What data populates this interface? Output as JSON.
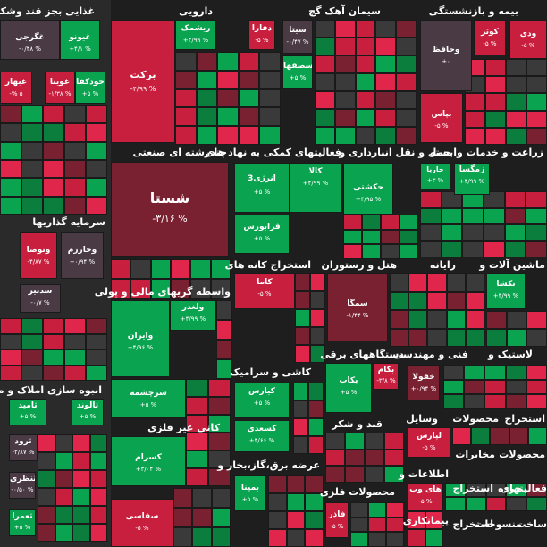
{
  "colors": {
    "green": "#0aa34f",
    "green_dark": "#0b7d3d",
    "neutral": "#3a3a3a",
    "red_dark": "#7a2131",
    "red": "#c91f3e",
    "red_light": "#e0264a",
    "mauve": "#4a3a44",
    "text": "#ffffff"
  },
  "sectors": [
    {
      "label": "غذایی بجز قند وشکر"
    },
    {
      "label": "دارویی"
    },
    {
      "label": "سیمان آهک گچ"
    },
    {
      "label": "بیمه و بازنشستگی"
    },
    {
      "label": "چندرشته ای صنعتی"
    },
    {
      "label": "فعالیتهای کمکی به نهاد های"
    },
    {
      "label": "حمل و نقل انبارداری و"
    },
    {
      "label": "زراعت و خدمات وابسته"
    },
    {
      "label": "سرمایه گذاریها"
    },
    {
      "label": "استخراج کانه های"
    },
    {
      "label": "هتل و رستوران"
    },
    {
      "label": "رایانه"
    },
    {
      "label": "ماشین آلات و"
    },
    {
      "label": "واسطه گریهای مالی و پولی"
    },
    {
      "label": "دستگاههای برقی"
    },
    {
      "label": "فنی و مهندسی"
    },
    {
      "label": "لاستیک و"
    },
    {
      "label": "انبوه سازی املاک و مس"
    },
    {
      "label": "کاشی و سرامیک"
    },
    {
      "label": "کانی غیر فلزی"
    },
    {
      "label": "قند و شکر"
    },
    {
      "label": "وسایل"
    },
    {
      "label": "محصولات"
    },
    {
      "label": "استخراج"
    },
    {
      "label": "مخابرات"
    },
    {
      "label": "محصولات"
    },
    {
      "label": "عرضه برق،گاز،بخار و"
    },
    {
      "label": "اطلاعات و"
    },
    {
      "label": "استخراج"
    },
    {
      "label": "خرده"
    },
    {
      "label": "فعالیتهای"
    },
    {
      "label": "محصولات فلزی"
    },
    {
      "label": "پیمانکاری"
    },
    {
      "label": "استخراج"
    },
    {
      "label": "ساخت"
    },
    {
      "label": "منسوجات"
    }
  ],
  "tiles": [
    {
      "name": "شستا",
      "pct": "-۳/۱۶ %",
      "color": "red_dark"
    },
    {
      "name": "برکت",
      "pct": "-۴/۹۹ %",
      "color": "red"
    },
    {
      "name": "غگرجی",
      "pct": "-۰/۴۸ %",
      "color": "mauve"
    },
    {
      "name": "غیونو",
      "pct": "+۴/۱ %",
      "color": "green"
    },
    {
      "name": "غبهار",
      "pct": "-% ۵",
      "color": "red"
    },
    {
      "name": "غویتا",
      "pct": "-۱/۳۸ %",
      "color": "red"
    },
    {
      "name": "خودکفا",
      "pct": "+۵ %",
      "color": "green"
    },
    {
      "name": "ریشمک",
      "pct": "+۴/۹۹ %",
      "color": "green"
    },
    {
      "name": "دفارا",
      "pct": "-۵ %",
      "color": "red"
    },
    {
      "name": "سیتا",
      "pct": "-۰/۴۷ %",
      "color": "mauve"
    },
    {
      "name": "سصفها",
      "pct": "+۵ %",
      "color": "green"
    },
    {
      "name": "کوثر",
      "pct": "-۵ %",
      "color": "red"
    },
    {
      "name": "ودی",
      "pct": "-۵ %",
      "color": "red"
    },
    {
      "name": "وحافظ",
      "pct": "+۰",
      "color": "mauve"
    },
    {
      "name": "بپاس",
      "pct": "-۵ %",
      "color": "red"
    },
    {
      "name": "انرژی3",
      "pct": "+۵ %",
      "color": "green"
    },
    {
      "name": "کالا",
      "pct": "+۴/۹۹ %",
      "color": "green"
    },
    {
      "name": "فرابورس",
      "pct": "+۵ %",
      "color": "green"
    },
    {
      "name": "حکشتی",
      "pct": "+۴/۹۵ %",
      "color": "green"
    },
    {
      "name": "حاریا",
      "pct": "+۳ %",
      "color": "green"
    },
    {
      "name": "زمگسا",
      "pct": "+۴/۹۹ %",
      "color": "green"
    },
    {
      "name": "وتوصا",
      "pct": "-۴/۸۷ %",
      "color": "red"
    },
    {
      "name": "وخارزم",
      "pct": "+۰/۹۴ %",
      "color": "mauve"
    },
    {
      "name": "سدبیر",
      "pct": "-۰/۷ %",
      "color": "mauve"
    },
    {
      "name": "کاما",
      "pct": "-۵ %",
      "color": "red"
    },
    {
      "name": "سمگا",
      "pct": "-۱/۴۴ %",
      "color": "red_dark"
    },
    {
      "name": "تکشا",
      "pct": "+۴/۹۹ %",
      "color": "green"
    },
    {
      "name": "ولغدر",
      "pct": "+۴/۹۹ %",
      "color": "green"
    },
    {
      "name": "وایران",
      "pct": "+۴/۹۶ %",
      "color": "green"
    },
    {
      "name": "سرچشمه",
      "pct": "+۵ %",
      "color": "green"
    },
    {
      "name": "بکام",
      "pct": "-۳/۸ %",
      "color": "red"
    },
    {
      "name": "بکاب",
      "pct": "+۵ %",
      "color": "green"
    },
    {
      "name": "خفولا",
      "pct": "+۰/۹۴ %",
      "color": "red_dark"
    },
    {
      "name": "کیارس",
      "pct": "+۵ %",
      "color": "green"
    },
    {
      "name": "کسعدی",
      "pct": "+۴/۶۶ %",
      "color": "green"
    },
    {
      "name": "ثامید",
      "pct": "+۵ %",
      "color": "green"
    },
    {
      "name": "ثالوند",
      "pct": "+۵ %",
      "color": "green"
    },
    {
      "name": "ثرود",
      "pct": "-۲/۸۷ %",
      "color": "mauve"
    },
    {
      "name": "ثنظری",
      "pct": "-۰/۵۰ %",
      "color": "mauve"
    },
    {
      "name": "ثعمرا",
      "pct": "+۵ %",
      "color": "green"
    },
    {
      "name": "کسرام",
      "pct": "+۳/۰۴ %",
      "color": "green"
    },
    {
      "name": "سفاسی",
      "pct": "-۵ %",
      "color": "red"
    },
    {
      "name": "لپارس",
      "pct": "-۵ %",
      "color": "red"
    },
    {
      "name": "های وب",
      "pct": "-۵ %",
      "color": "red"
    },
    {
      "name": "بمپنا",
      "pct": "+۵ %",
      "color": "green"
    },
    {
      "name": "فاذر",
      "pct": "-۵ %",
      "color": "red"
    }
  ]
}
